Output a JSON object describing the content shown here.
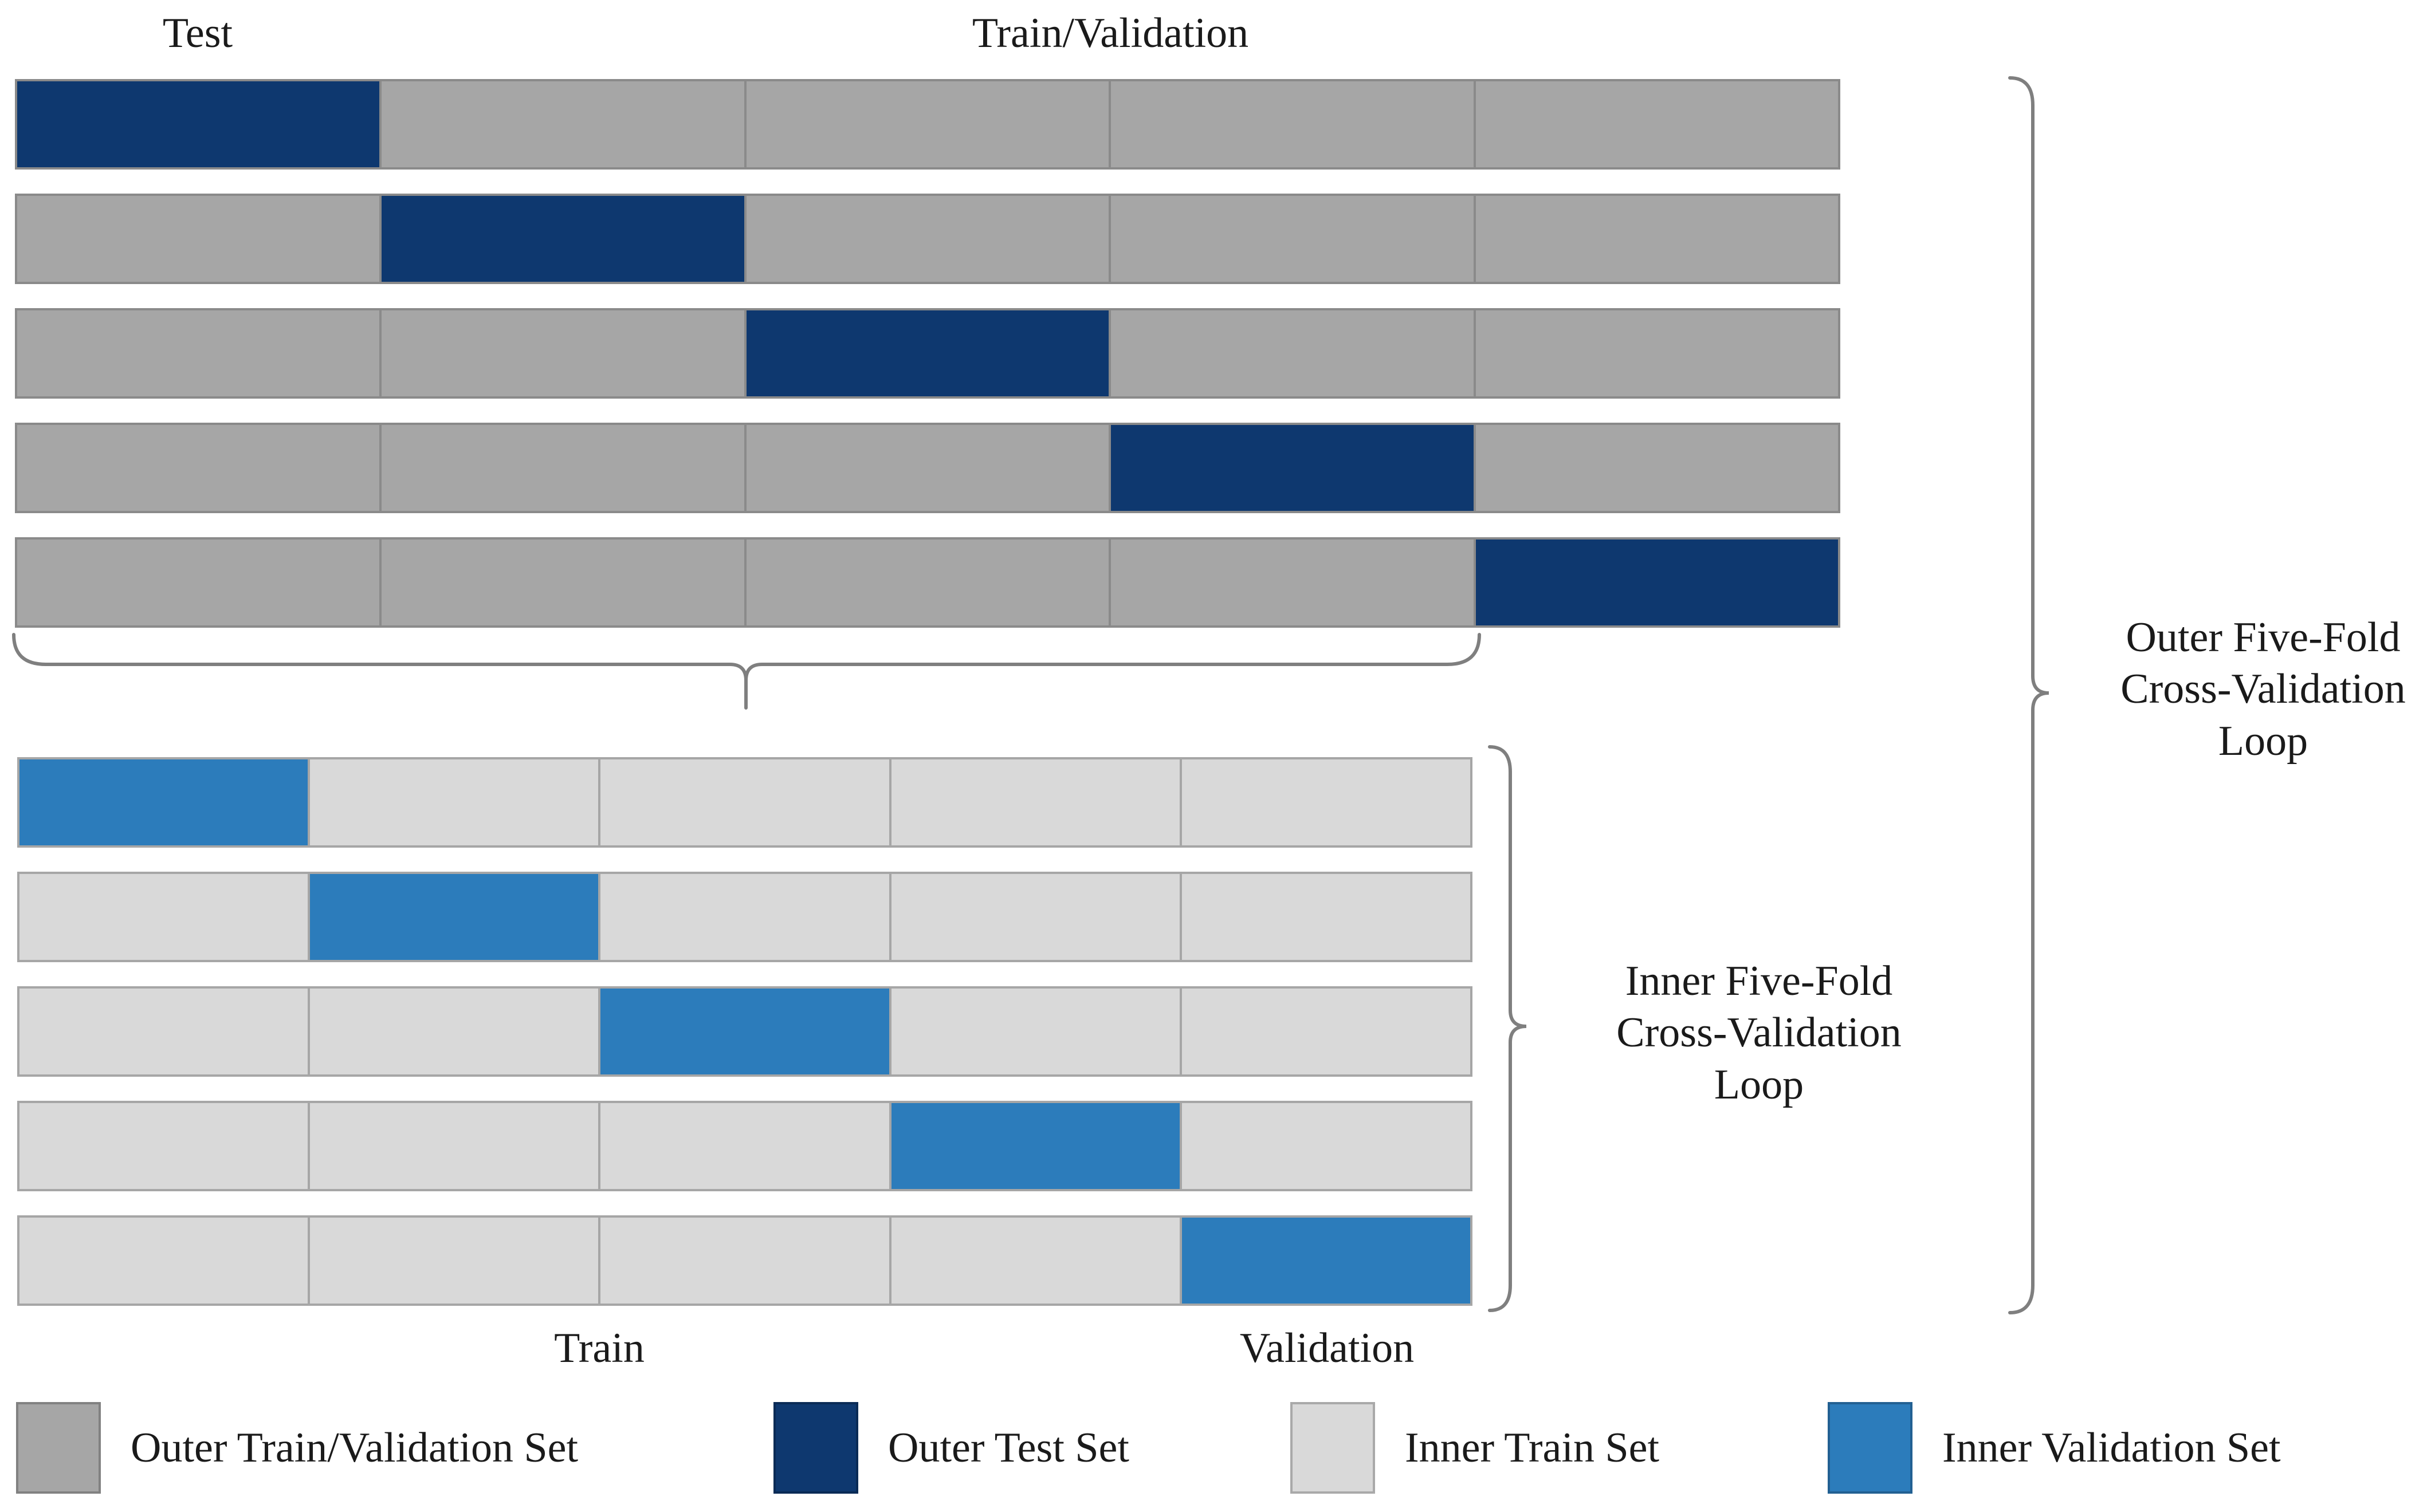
{
  "figure": {
    "top_labels": {
      "test": "Test",
      "train_validation": "Train/Validation"
    },
    "bottom_labels": {
      "train": "Train",
      "validation": "Validation"
    },
    "outer_loop_label_lines": [
      "Outer Five-Fold",
      "Cross-Validation",
      "Loop"
    ],
    "inner_loop_label_lines": [
      "Inner Five-Fold",
      "Cross-Validation",
      "Loop"
    ]
  },
  "colors": {
    "outer_train": "#A6A6A6",
    "outer_test": "#0E386F",
    "inner_train": "#D9D9D9",
    "inner_validation": "#2C7CBB",
    "outer_sep": "#8A8A8A",
    "inner_sep": "#A6A6A6",
    "brace": "#7F7F7F"
  },
  "outer_grid": {
    "rows": 5,
    "cols": 5,
    "highlight_positions": [
      0,
      1,
      2,
      3,
      4
    ]
  },
  "inner_grid": {
    "rows": 5,
    "cols": 5,
    "highlight_positions": [
      0,
      1,
      2,
      3,
      4
    ]
  },
  "legend": [
    {
      "swatch": "outer_train",
      "label": "Outer Train/Validation Set"
    },
    {
      "swatch": "outer_test",
      "label": "Outer Test Set"
    },
    {
      "swatch": "inner_train",
      "label": "Inner Train Set"
    },
    {
      "swatch": "inner_validation",
      "label": "Inner Validation Set"
    }
  ]
}
